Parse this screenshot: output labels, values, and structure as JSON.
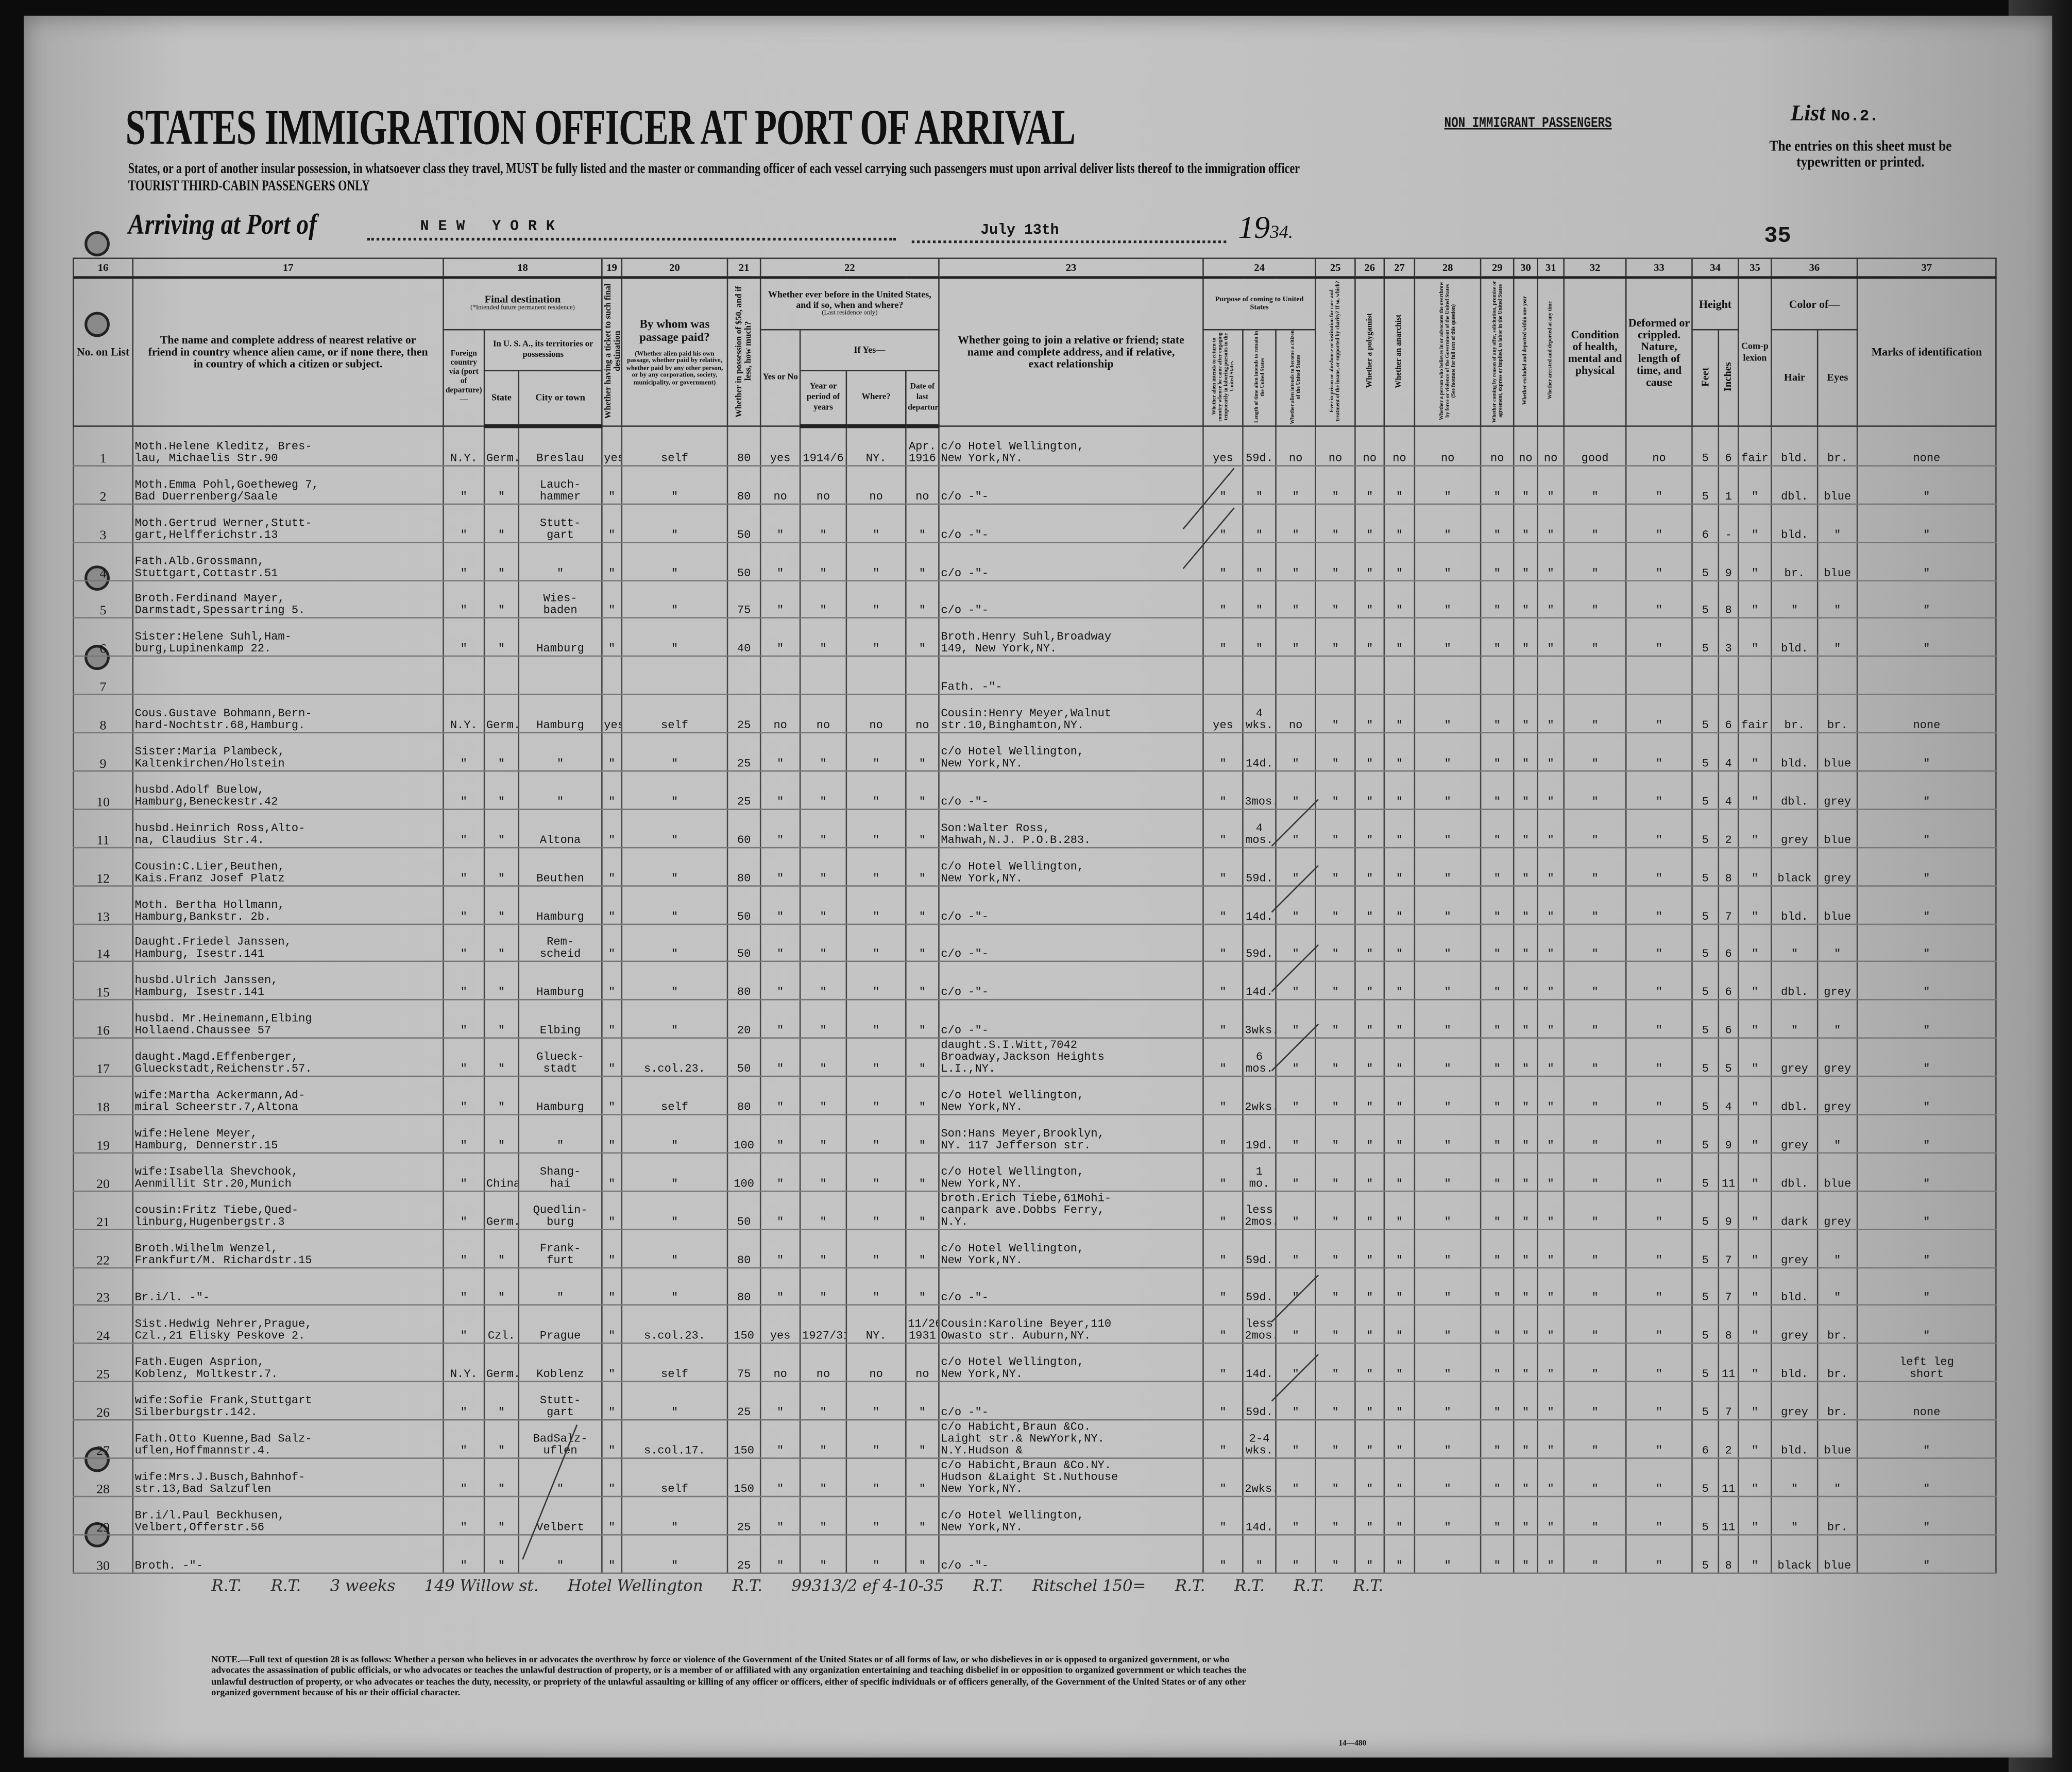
{
  "header": {
    "title": "STATES IMMIGRATION OFFICER AT PORT OF ARRIVAL",
    "subtitle": "States, or a port of another insular possession, in whatsoever class they travel, MUST be fully listed and the master or commanding officer of each vessel carrying such passengers must upon arrival deliver lists thereof to the immigration officer",
    "class_line": "TOURIST THIRD-CABIN PASSENGERS ONLY",
    "non_immigrant": "NON IMMIGRANT PASSENGERS",
    "list_label": "List",
    "list_no": "No.2.",
    "entries_note": "The entries on this sheet must be typewritten or printed.",
    "arriving_label": "Arriving at Port of",
    "port": "NEW YORK",
    "date": "July 13th",
    "year_prefix": "19",
    "year_suffix": "34.",
    "sheet_number": "35"
  },
  "column_numbers": [
    "16",
    "17",
    "18",
    "19",
    "20",
    "21",
    "22",
    "23",
    "24",
    "25",
    "26",
    "27",
    "28",
    "29",
    "30",
    "31",
    "32",
    "33",
    "34",
    "35",
    "36",
    "37"
  ],
  "columns": {
    "no": "No. on List",
    "relative": "The name and complete address of nearest relative or friend in country whence alien came, or if none there, then in country of which a citizen or subject.",
    "final_dest": "Final destination",
    "final_dest_note": "(*Intended future permanent residence)",
    "foreign": "Foreign country via (port of departure)—",
    "usa": "In U. S. A., its territories or possessions",
    "state": "State",
    "city": "City or town",
    "ticket": "Whether having a ticket to such final destination",
    "paid": "By whom was passage paid?",
    "paid_note": "(Whether alien paid his own passage, whether paid by relative, whether paid by any other person, or by any corporation, society, municipality, or government)",
    "money": "Whether in possession of $50, and if less, how much?",
    "before": "Whether ever before in the United States, and if so, when and where?",
    "before_note": "(Last residence only)",
    "yes_no": "Yes or No",
    "if_yes": "If Yes—",
    "year": "Year or period of years",
    "where": "Where?",
    "last_dep": "Date of last departure",
    "join": "Whether going to join a relative or friend; state name and complete address, and if relative, exact relationship",
    "purpose": "Purpose of coming to United States",
    "purpose_a": "Whether alien intends to return to country whence he came after engaging temporarily in laboring pursuits in the United States",
    "purpose_b": "Length of time alien intends to remain in the United States",
    "purpose_c": "Whether alien intends to become a citizen of the United States",
    "c25": "Ever in prison or almshouse or institution for care and treatment of the insane, or supported by charity? If so, which?",
    "c26": "Whether a polygamist",
    "c27": "Whether an anarchist",
    "c28": "Whether a person who believes in or advocates the overthrow by force or violence of the Government of the United States (See footnote for full text of this question)",
    "c29": "Whether coming by reason of any offer, solicitation, promise or agreement, express or implied, to labor in the United States",
    "c30": "Whether excluded and deported within one year",
    "c31": "Whether arrested and deported at any time",
    "condition": "Condition of health, mental and physical",
    "deformed": "Deformed or crippled. Nature, length of time, and cause",
    "height": "Height",
    "feet": "Feet",
    "inches": "Inches",
    "complexion": "Com-plexion",
    "color": "Color of—",
    "hair": "Hair",
    "eyes": "Eyes",
    "marks": "Marks of identification"
  },
  "rows": [
    [
      "1",
      "Moth.Helene Kleditz, Bres-\nlau, Michaelis Str.90",
      "N.Y.",
      "Germ.",
      "Breslau",
      "yes",
      "self",
      "80",
      "yes",
      "1914/6",
      "NY.",
      "Apr.\n1916",
      "c/o Hotel Wellington,\nNew York,NY.",
      "yes",
      "59d.",
      "no",
      "no",
      "no",
      "no",
      "no",
      "no",
      "no",
      "no",
      "good",
      "no",
      "5",
      "6",
      "fair",
      "bld.",
      "br.",
      "none"
    ],
    [
      "2",
      "Moth.Emma Pohl,Goetheweg 7,\nBad Duerrenberg/Saale",
      "\"",
      "\"",
      "Lauch-\nhammer",
      "\"",
      "\"",
      "80",
      "no",
      "no",
      "no",
      "no",
      "c/o      -\"-",
      "\"",
      "\"",
      "\"",
      "\"",
      "\"",
      "\"",
      "\"",
      "\"",
      "\"",
      "\"",
      "\"",
      "\"",
      "5",
      "1",
      "\"",
      "dbl.",
      "blue",
      "\""
    ],
    [
      "3",
      "Moth.Gertrud Werner,Stutt-\ngart,Helfferichstr.13",
      "\"",
      "\"",
      "Stutt-\ngart",
      "\"",
      "\"",
      "50",
      "\"",
      "\"",
      "\"",
      "\"",
      "c/o      -\"-",
      "\"",
      "\"",
      "\"",
      "\"",
      "\"",
      "\"",
      "\"",
      "\"",
      "\"",
      "\"",
      "\"",
      "\"",
      "6",
      "-",
      "\"",
      "bld.",
      "\"",
      "\""
    ],
    [
      "4",
      "Fath.Alb.Grossmann,\nStuttgart,Cottastr.51",
      "\"",
      "\"",
      "\"",
      "\"",
      "\"",
      "50",
      "\"",
      "\"",
      "\"",
      "\"",
      "c/o      -\"-",
      "\"",
      "\"",
      "\"",
      "\"",
      "\"",
      "\"",
      "\"",
      "\"",
      "\"",
      "\"",
      "\"",
      "\"",
      "5",
      "9",
      "\"",
      "br.",
      "blue",
      "\""
    ],
    [
      "5",
      "Broth.Ferdinand Mayer,\nDarmstadt,Spessartring 5.",
      "\"",
      "\"",
      "Wies-\nbaden",
      "\"",
      "\"",
      "75",
      "\"",
      "\"",
      "\"",
      "\"",
      "c/o      -\"-",
      "\"",
      "\"",
      "\"",
      "\"",
      "\"",
      "\"",
      "\"",
      "\"",
      "\"",
      "\"",
      "\"",
      "\"",
      "5",
      "8",
      "\"",
      "\"",
      "\"",
      "\""
    ],
    [
      "6",
      "Sister:Helene Suhl,Ham-\nburg,Lupinenkamp 22.",
      "\"",
      "\"",
      "Hamburg",
      "\"",
      "\"",
      "40",
      "\"",
      "\"",
      "\"",
      "\"",
      "Broth.Henry Suhl,Broadway\n149, New York,NY.",
      "\"",
      "\"",
      "\"",
      "\"",
      "\"",
      "\"",
      "\"",
      "\"",
      "\"",
      "\"",
      "\"",
      "\"",
      "5",
      "3",
      "\"",
      "bld.",
      "\"",
      "\""
    ],
    [
      "7",
      "",
      "",
      "",
      "",
      "",
      "",
      "",
      "",
      "",
      "",
      "",
      "Fath.      -\"-",
      "",
      "",
      "",
      "",
      "",
      "",
      "",
      "",
      "",
      "",
      "",
      "",
      "",
      "",
      "",
      "",
      "",
      ""
    ],
    [
      "8",
      "Cous.Gustave Bohmann,Bern-\nhard-Nochtstr.68,Hamburg.",
      "N.Y.",
      "Germ.",
      "Hamburg",
      "yes",
      "self",
      "25",
      "no",
      "no",
      "no",
      "no",
      "Cousin:Henry Meyer,Walnut\nstr.10,Binghamton,NY.",
      "yes",
      "4\nwks.",
      "no",
      "\"",
      "\"",
      "\"",
      "\"",
      "\"",
      "\"",
      "\"",
      "\"",
      "\"",
      "5",
      "6",
      "fair",
      "br.",
      "br.",
      "none"
    ],
    [
      "9",
      "Sister:Maria Plambeck,\nKaltenkirchen/Holstein",
      "\"",
      "\"",
      "\"",
      "\"",
      "\"",
      "25",
      "\"",
      "\"",
      "\"",
      "\"",
      "c/o Hotel Wellington,\nNew York,NY.",
      "\"",
      "14d.",
      "\"",
      "\"",
      "\"",
      "\"",
      "\"",
      "\"",
      "\"",
      "\"",
      "\"",
      "\"",
      "5",
      "4",
      "\"",
      "bld.",
      "blue",
      "\""
    ],
    [
      "10",
      "husbd.Adolf Buelow,\nHamburg,Beneckestr.42",
      "\"",
      "\"",
      "\"",
      "\"",
      "\"",
      "25",
      "\"",
      "\"",
      "\"",
      "\"",
      "c/o      -\"-",
      "\"",
      "3mos.",
      "\"",
      "\"",
      "\"",
      "\"",
      "\"",
      "\"",
      "\"",
      "\"",
      "\"",
      "\"",
      "5",
      "4",
      "\"",
      "dbl.",
      "grey",
      "\""
    ],
    [
      "11",
      "husbd.Heinrich Ross,Alto-\nna, Claudius Str.4.",
      "\"",
      "\"",
      "Altona",
      "\"",
      "\"",
      "60",
      "\"",
      "\"",
      "\"",
      "\"",
      "Son:Walter Ross,\nMahwah,N.J. P.O.B.283.",
      "\"",
      "4\nmos.",
      "\"",
      "\"",
      "\"",
      "\"",
      "\"",
      "\"",
      "\"",
      "\"",
      "\"",
      "\"",
      "5",
      "2",
      "\"",
      "grey",
      "blue",
      "\""
    ],
    [
      "12",
      "Cousin:C.Lier,Beuthen,\nKais.Franz Josef Platz",
      "\"",
      "\"",
      "Beuthen",
      "\"",
      "\"",
      "80",
      "\"",
      "\"",
      "\"",
      "\"",
      "c/o Hotel Wellington,\nNew York,NY.",
      "\"",
      "59d.",
      "\"",
      "\"",
      "\"",
      "\"",
      "\"",
      "\"",
      "\"",
      "\"",
      "\"",
      "\"",
      "5",
      "8",
      "\"",
      "black",
      "grey",
      "\""
    ],
    [
      "13",
      "Moth. Bertha Hollmann,\nHamburg,Bankstr. 2b.",
      "\"",
      "\"",
      "Hamburg",
      "\"",
      "\"",
      "50",
      "\"",
      "\"",
      "\"",
      "\"",
      "c/o      -\"-",
      "\"",
      "14d.",
      "\"",
      "\"",
      "\"",
      "\"",
      "\"",
      "\"",
      "\"",
      "\"",
      "\"",
      "\"",
      "5",
      "7",
      "\"",
      "bld.",
      "blue",
      "\""
    ],
    [
      "14",
      "Daught.Friedel Janssen,\nHamburg, Isestr.141",
      "\"",
      "\"",
      "Rem-\nscheid",
      "\"",
      "\"",
      "50",
      "\"",
      "\"",
      "\"",
      "\"",
      "c/o      -\"-",
      "\"",
      "59d.",
      "\"",
      "\"",
      "\"",
      "\"",
      "\"",
      "\"",
      "\"",
      "\"",
      "\"",
      "\"",
      "5",
      "6",
      "\"",
      "\"",
      "\"",
      "\""
    ],
    [
      "15",
      "husbd.Ulrich Janssen,\nHamburg, Isestr.141",
      "\"",
      "\"",
      "Hamburg",
      "\"",
      "\"",
      "80",
      "\"",
      "\"",
      "\"",
      "\"",
      "c/o      -\"-",
      "\"",
      "14d.",
      "\"",
      "\"",
      "\"",
      "\"",
      "\"",
      "\"",
      "\"",
      "\"",
      "\"",
      "\"",
      "5",
      "6",
      "\"",
      "dbl.",
      "grey",
      "\""
    ],
    [
      "16",
      "husbd. Mr.Heinemann,Elbing\nHollaend.Chaussee 57",
      "\"",
      "\"",
      "Elbing",
      "\"",
      "\"",
      "20",
      "\"",
      "\"",
      "\"",
      "\"",
      "c/o      -\"-",
      "\"",
      "3wks.",
      "\"",
      "\"",
      "\"",
      "\"",
      "\"",
      "\"",
      "\"",
      "\"",
      "\"",
      "\"",
      "5",
      "6",
      "\"",
      "\"",
      "\"",
      "\""
    ],
    [
      "17",
      "daught.Magd.Effenberger,\nGlueckstadt,Reichenstr.57.",
      "\"",
      "\"",
      "Glueck-\nstadt",
      "\"",
      "s.col.23.",
      "50",
      "\"",
      "\"",
      "\"",
      "\"",
      "daught.S.I.Witt,7042\nBroadway,Jackson Heights\nL.I.,NY.",
      "\"",
      "6\nmos.",
      "\"",
      "\"",
      "\"",
      "\"",
      "\"",
      "\"",
      "\"",
      "\"",
      "\"",
      "\"",
      "5",
      "5",
      "\"",
      "grey",
      "grey",
      "\""
    ],
    [
      "18",
      "wife:Martha Ackermann,Ad-\nmiral Scheerstr.7,Altona",
      "\"",
      "\"",
      "Hamburg",
      "\"",
      "self",
      "80",
      "\"",
      "\"",
      "\"",
      "\"",
      "c/o Hotel Wellington,\nNew York,NY.",
      "\"",
      "2wks.",
      "\"",
      "\"",
      "\"",
      "\"",
      "\"",
      "\"",
      "\"",
      "\"",
      "\"",
      "\"",
      "5",
      "4",
      "\"",
      "dbl.",
      "grey",
      "\""
    ],
    [
      "19",
      "wife:Helene Meyer,\nHamburg, Dennerstr.15",
      "\"",
      "\"",
      "\"",
      "\"",
      "\"",
      "100",
      "\"",
      "\"",
      "\"",
      "\"",
      "Son:Hans Meyer,Brooklyn,\nNY. 117 Jefferson str.",
      "\"",
      "19d.",
      "\"",
      "\"",
      "\"",
      "\"",
      "\"",
      "\"",
      "\"",
      "\"",
      "\"",
      "\"",
      "5",
      "9",
      "\"",
      "grey",
      "\"",
      "\""
    ],
    [
      "20",
      "wife:Isabella Shevchook,\nAenmillit Str.20,Munich",
      "\"",
      "China",
      "Shang-\nhai",
      "\"",
      "\"",
      "100",
      "\"",
      "\"",
      "\"",
      "\"",
      "c/o Hotel Wellington,\nNew York,NY.",
      "\"",
      "1 mo.",
      "\"",
      "\"",
      "\"",
      "\"",
      "\"",
      "\"",
      "\"",
      "\"",
      "\"",
      "\"",
      "5",
      "11",
      "\"",
      "dbl.",
      "blue",
      "\""
    ],
    [
      "21",
      "cousin:Fritz Tiebe,Qued-\nlinburg,Hugenbergstr.3",
      "\"",
      "Germ.",
      "Quedlin-\nburg",
      "\"",
      "\"",
      "50",
      "\"",
      "\"",
      "\"",
      "\"",
      "broth.Erich Tiebe,61Mohi-\ncanpark ave.Dobbs Ferry,\nN.Y.",
      "\"",
      "less\n2mos.",
      "\"",
      "\"",
      "\"",
      "\"",
      "\"",
      "\"",
      "\"",
      "\"",
      "\"",
      "\"",
      "5",
      "9",
      "\"",
      "dark",
      "grey",
      "\""
    ],
    [
      "22",
      "Broth.Wilhelm Wenzel,\nFrankfurt/M. Richardstr.15",
      "\"",
      "\"",
      "Frank-\nfurt",
      "\"",
      "\"",
      "80",
      "\"",
      "\"",
      "\"",
      "\"",
      "c/o Hotel Wellington,\nNew York,NY.",
      "\"",
      "59d.",
      "\"",
      "\"",
      "\"",
      "\"",
      "\"",
      "\"",
      "\"",
      "\"",
      "\"",
      "\"",
      "5",
      "7",
      "\"",
      "grey",
      "\"",
      "\""
    ],
    [
      "23",
      "Br.i/l.      -\"-",
      "\"",
      "\"",
      "\"",
      "\"",
      "\"",
      "80",
      "\"",
      "\"",
      "\"",
      "\"",
      "c/o      -\"-",
      "\"",
      "59d.",
      "\"",
      "\"",
      "\"",
      "\"",
      "\"",
      "\"",
      "\"",
      "\"",
      "\"",
      "\"",
      "5",
      "7",
      "\"",
      "bld.",
      "\"",
      "\""
    ],
    [
      "24",
      "Sist.Hedwig Nehrer,Prague,\nCzl.,21 Elisky Peskove 2.",
      "\"",
      "Czl.",
      "Prague",
      "\"",
      "s.col.23.",
      "150",
      "yes",
      "1927/31",
      "NY.",
      "11/26\n1931",
      "Cousin:Karoline Beyer,110\nOwasto str. Auburn,NY.",
      "\"",
      "less\n2mos.",
      "\"",
      "\"",
      "\"",
      "\"",
      "\"",
      "\"",
      "\"",
      "\"",
      "\"",
      "\"",
      "5",
      "8",
      "\"",
      "grey",
      "br.",
      "\""
    ],
    [
      "25",
      "Fath.Eugen Asprion,\nKoblenz, Moltkestr.7.",
      "N.Y.",
      "Germ.",
      "Koblenz",
      "\"",
      "self",
      "75",
      "no",
      "no",
      "no",
      "no",
      "c/o Hotel Wellington,\nNew York,NY.",
      "\"",
      "14d.",
      "\"",
      "\"",
      "\"",
      "\"",
      "\"",
      "\"",
      "\"",
      "\"",
      "\"",
      "\"",
      "5",
      "11",
      "\"",
      "bld.",
      "br.",
      "left leg\nshort"
    ],
    [
      "26",
      "wife:Sofie Frank,Stuttgart\nSilberburgstr.142.",
      "\"",
      "\"",
      "Stutt-\ngart",
      "\"",
      "\"",
      "25",
      "\"",
      "\"",
      "\"",
      "\"",
      "c/o      -\"-",
      "\"",
      "59d.",
      "\"",
      "\"",
      "\"",
      "\"",
      "\"",
      "\"",
      "\"",
      "\"",
      "\"",
      "\"",
      "5",
      "7",
      "\"",
      "grey",
      "br.",
      "none"
    ],
    [
      "27",
      "Fath.Otto Kuenne,Bad Salz-\nuflen,Hoffmannstr.4.",
      "\"",
      "\"",
      "BadSalz-\nuflen",
      "\"",
      "s.col.17.",
      "150",
      "\"",
      "\"",
      "\"",
      "\"",
      "c/o Habicht,Braun &Co.\nLaight str.& NewYork,NY.\nN.Y.Hudson &",
      "\"",
      "2-4\nwks.",
      "\"",
      "\"",
      "\"",
      "\"",
      "\"",
      "\"",
      "\"",
      "\"",
      "\"",
      "\"",
      "6",
      "2",
      "\"",
      "bld.",
      "blue",
      "\""
    ],
    [
      "28",
      "wife:Mrs.J.Busch,Bahnhof-\nstr.13,Bad Salzuflen",
      "\"",
      "\"",
      "\"",
      "\"",
      "self",
      "150",
      "\"",
      "\"",
      "\"",
      "\"",
      "c/o Habicht,Braun &Co.NY.\nHudson &Laight St.Nuthouse\nNew York,NY.",
      "\"",
      "2wks.",
      "\"",
      "\"",
      "\"",
      "\"",
      "\"",
      "\"",
      "\"",
      "\"",
      "\"",
      "\"",
      "5",
      "11",
      "\"",
      "\"",
      "\"",
      "\""
    ],
    [
      "29",
      "Br.i/l.Paul Beckhusen,\nVelbert,Offerstr.56",
      "\"",
      "\"",
      "Velbert",
      "\"",
      "\"",
      "25",
      "\"",
      "\"",
      "\"",
      "\"",
      "c/o Hotel Wellington,\nNew York,NY.",
      "\"",
      "14d.",
      "\"",
      "\"",
      "\"",
      "\"",
      "\"",
      "\"",
      "\"",
      "\"",
      "\"",
      "\"",
      "5",
      "11",
      "\"",
      "\"",
      "br.",
      "\""
    ],
    [
      "30",
      "Broth.      -\"-",
      "\"",
      "\"",
      "\"",
      "\"",
      "\"",
      "25",
      "\"",
      "\"",
      "\"",
      "\"",
      "c/o      -\"-",
      "\"",
      "\"",
      "\"",
      "\"",
      "\"",
      "\"",
      "\"",
      "\"",
      "\"",
      "\"",
      "\"",
      "\"",
      "5",
      "8",
      "\"",
      "black",
      "blue",
      "\""
    ]
  ],
  "handwritten": [
    "R.T.",
    "R.T.",
    "3 weeks",
    "149 Willow st.",
    "Hotel Wellington",
    "R.T.",
    "99313/2 ef 4-10-35",
    "R.T.",
    "Ritschel 150=",
    "R.T.",
    "R.T.",
    "R.T.",
    "R.T."
  ],
  "footnote": "NOTE.—Full text of question 28 is as follows: Whether a person who believes in or advocates the overthrow by force or violence of the Government of the United States or of all forms of law, or who disbelieves in or is opposed to organized government, or who advocates the assassination of public officials, or who advocates or teaches the unlawful destruction of property, or is a member of or affiliated with any organization entertaining and teaching disbelief in or opposition to organized government or which teaches the unlawful destruction of property, or who advocates or teaches the duty, necessity, or propriety of the unlawful assaulting or killing of any officer or officers, either of specific individuals or of officers generally, of the Government of the United States or of any other organized government because of his or their official character.",
  "form_number": "14—480"
}
